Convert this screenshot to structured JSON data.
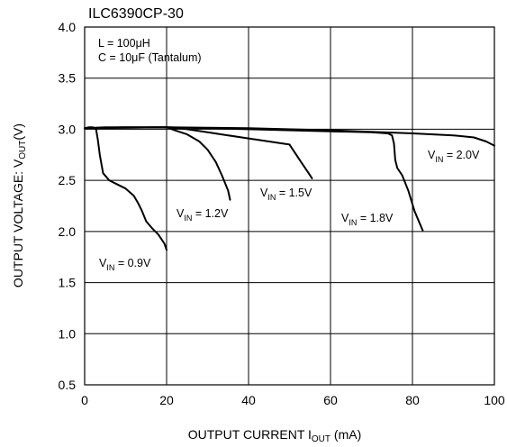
{
  "chart_data": {
    "type": "line",
    "title": "ILC6390CP-30",
    "xlabel": {
      "main": "OUTPUT CURRENT I",
      "sub": "OUT",
      "unit": " (mA)"
    },
    "ylabel": {
      "main": "OUTPUT VOLTAGE: V",
      "sub": "OUT",
      "unit": "(V)"
    },
    "xlim": [
      0,
      100
    ],
    "ylim": [
      0.5,
      4.0
    ],
    "x_ticks": [
      "0",
      "20",
      "40",
      "60",
      "80",
      "100"
    ],
    "y_ticks": [
      "0.5",
      "1.0",
      "1.5",
      "2.0",
      "2.5",
      "3.0",
      "3.5",
      "4.0"
    ],
    "grid": true,
    "annotations": [
      "L = 100μH",
      "C = 10μF (Tantalum)"
    ],
    "series": [
      {
        "name": "VIN = 0.9V",
        "label": {
          "pre": "V",
          "sub": "IN",
          "post": " = 0.9V"
        },
        "x": [
          0,
          1,
          2,
          2.8,
          3.2,
          3.7,
          4.5,
          6,
          8,
          10,
          12,
          13,
          14,
          15,
          16.5,
          18,
          19.5,
          20
        ],
        "y": [
          3.01,
          3.02,
          3.02,
          3.0,
          2.9,
          2.75,
          2.57,
          2.5,
          2.46,
          2.42,
          2.35,
          2.28,
          2.2,
          2.1,
          2.03,
          1.97,
          1.88,
          1.82
        ]
      },
      {
        "name": "VIN = 1.2V",
        "label": {
          "pre": "V",
          "sub": "IN",
          "post": " = 1.2V"
        },
        "x": [
          0,
          5,
          10,
          15,
          20,
          22,
          25,
          28,
          30,
          32,
          33.5,
          35,
          35.5
        ],
        "y": [
          3.01,
          3.02,
          3.02,
          3.02,
          3.02,
          2.99,
          2.95,
          2.88,
          2.8,
          2.68,
          2.55,
          2.4,
          2.31
        ]
      },
      {
        "name": "VIN = 1.5V",
        "label": {
          "pre": "V",
          "sub": "IN",
          "post": " = 1.5V"
        },
        "x": [
          0,
          10,
          20,
          25,
          30,
          35,
          40,
          45,
          50,
          51.5,
          53,
          54.5,
          55.5
        ],
        "y": [
          3.01,
          3.02,
          3.02,
          3.0,
          2.97,
          2.94,
          2.91,
          2.88,
          2.85,
          2.76,
          2.67,
          2.58,
          2.52
        ]
      },
      {
        "name": "VIN = 1.8V",
        "label": {
          "pre": "V",
          "sub": "IN",
          "post": " = 1.8V"
        },
        "x": [
          0,
          20,
          40,
          60,
          70,
          74,
          75,
          75.5,
          75.8,
          76.3,
          77.5,
          79,
          80.5,
          82.5
        ],
        "y": [
          3.01,
          3.02,
          3.0,
          2.98,
          2.97,
          2.96,
          2.94,
          2.86,
          2.7,
          2.62,
          2.55,
          2.4,
          2.2,
          2.01
        ]
      },
      {
        "name": "VIN = 2.0V",
        "label": {
          "pre": "V",
          "sub": "IN",
          "post": " = 2.0V"
        },
        "x": [
          0,
          20,
          40,
          60,
          80,
          90,
          95,
          98,
          100
        ],
        "y": [
          3.01,
          3.02,
          3.01,
          2.99,
          2.96,
          2.94,
          2.92,
          2.88,
          2.84
        ]
      }
    ]
  }
}
